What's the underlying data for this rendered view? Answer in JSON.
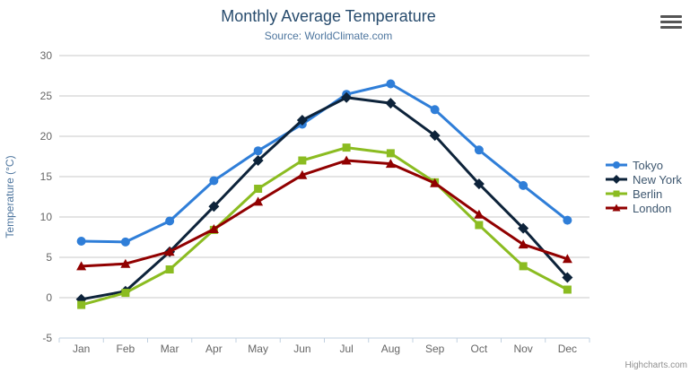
{
  "header": {
    "title": "Monthly Average Temperature",
    "subtitle": "Source: WorldClimate.com"
  },
  "toolbar": {
    "menu_icon": "hamburger-icon"
  },
  "credits": {
    "label": "Highcharts.com"
  },
  "colors": {
    "title": "#274b6d",
    "subtitle": "#4d759e",
    "axis_title": "#4d759e",
    "tick_label": "#666666",
    "gridline": "#C8C8C8",
    "axis_line": "#C0D0E0",
    "legend_text": "#3E576F"
  },
  "chart_data": {
    "type": "line",
    "title": "Monthly Average Temperature",
    "subtitle": "Source: WorldClimate.com",
    "categories": [
      "Jan",
      "Feb",
      "Mar",
      "Apr",
      "May",
      "Jun",
      "Jul",
      "Aug",
      "Sep",
      "Oct",
      "Nov",
      "Dec"
    ],
    "series": [
      {
        "name": "Tokyo",
        "color": "#2f7ed8",
        "marker": "circle",
        "values": [
          7.0,
          6.9,
          9.5,
          14.5,
          18.2,
          21.5,
          25.2,
          26.5,
          23.3,
          18.3,
          13.9,
          9.6
        ]
      },
      {
        "name": "New York",
        "color": "#0d233a",
        "marker": "diamond",
        "values": [
          -0.2,
          0.8,
          5.7,
          11.3,
          17.0,
          22.0,
          24.8,
          24.1,
          20.1,
          14.1,
          8.6,
          2.5
        ]
      },
      {
        "name": "Berlin",
        "color": "#8bbc21",
        "marker": "square",
        "values": [
          -0.9,
          0.6,
          3.5,
          8.4,
          13.5,
          17.0,
          18.6,
          17.9,
          14.3,
          9.0,
          3.9,
          1.0
        ]
      },
      {
        "name": "London",
        "color": "#910000",
        "marker": "triangle",
        "values": [
          3.9,
          4.2,
          5.7,
          8.5,
          11.9,
          15.2,
          17.0,
          16.6,
          14.2,
          10.3,
          6.6,
          4.8
        ]
      }
    ],
    "xlabel": "",
    "ylabel": "Temperature (°C)",
    "ylim": [
      -5,
      30
    ],
    "ytick_interval": 5,
    "grid": "horizontal",
    "legend_position": "right"
  }
}
